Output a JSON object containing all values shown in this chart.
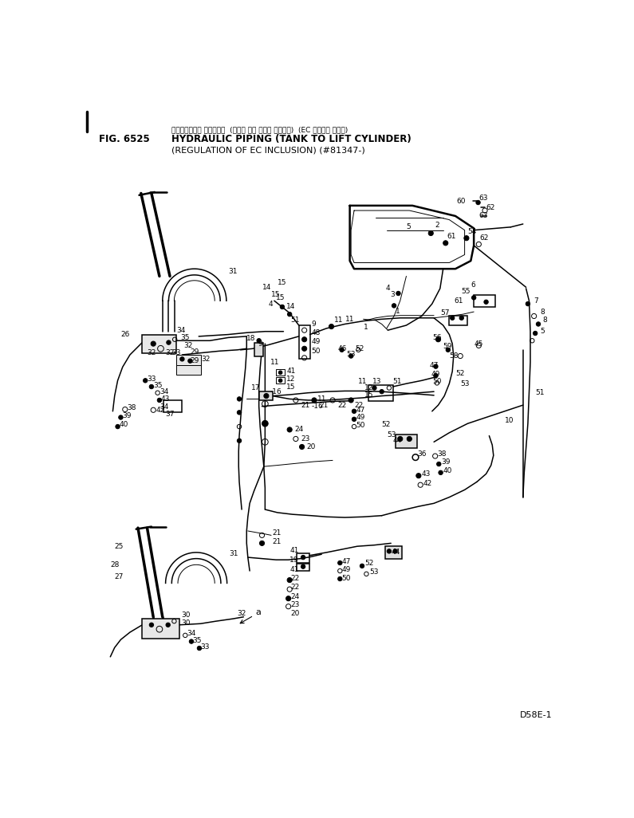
{
  "fig_number": "FIG. 6525",
  "title_japanese": "ハイド ロリック パイピング  (タンク から リフト シリンダ)  (EC ほかがい きせい)",
  "title_english": "HYDRAULIC PIPING (TANK TO LIFT CYLINDER)",
  "subtitle": "(REGULATION OF EC INCLUSION) (#81347-)",
  "model": "D58E-1",
  "bg": "#ffffff",
  "lc": "#000000"
}
